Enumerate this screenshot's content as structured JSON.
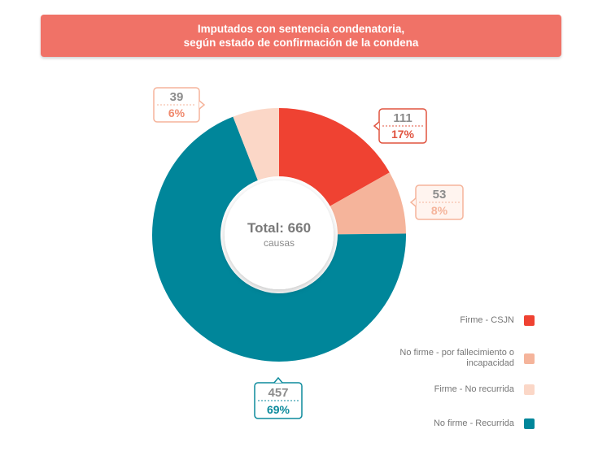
{
  "title": {
    "line1": "Imputados con sentencia condenatoria,",
    "line2": "según estado de confirmación de la condena"
  },
  "chart_data": {
    "type": "pie",
    "title": "Imputados con sentencia condenatoria, según estado de confirmación de la condena",
    "total_label": "Total: 660",
    "total_unit": "causas",
    "series": [
      {
        "name": "Firme - CSJN",
        "value": 111,
        "percent": "17%",
        "color": "#ef4232"
      },
      {
        "name": "No firme - por fallecimiento o incapacidad",
        "value": 53,
        "percent": "8%",
        "color": "#f5b49b"
      },
      {
        "name": "No firme - Recurrida",
        "value": 457,
        "percent": "69%",
        "color": "#00869a"
      },
      {
        "name": "Firme - No recurrida",
        "value": 39,
        "percent": "6%",
        "color": "#fbd7c7"
      }
    ]
  },
  "legend": [
    {
      "label": "Firme - CSJN",
      "color": "#ef4232"
    },
    {
      "label": "No firme - por fallecimiento o incapacidad",
      "color": "#f5b49b"
    },
    {
      "label": "Firme - No recurrida",
      "color": "#fbd7c7"
    },
    {
      "label": "No firme - Recurrida",
      "color": "#00869a"
    }
  ],
  "colors": {
    "banner": "#f07267",
    "callout_gray": "#8c8c8c"
  }
}
